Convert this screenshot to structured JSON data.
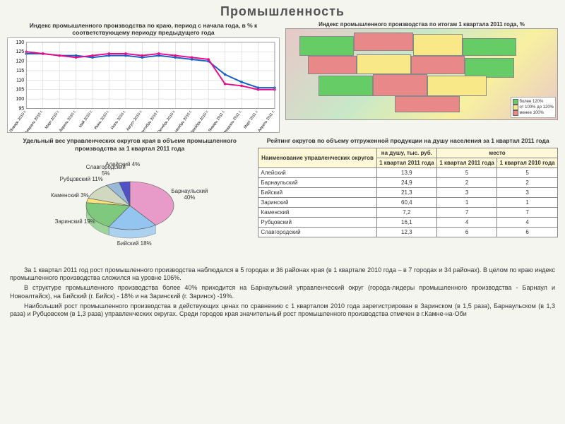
{
  "title": "Промышленность",
  "line_chart": {
    "title": "Индекс промышленного производства по краю, период с начала года, в % к соответствующему периоду предыдущего года",
    "ylim": [
      95,
      130
    ],
    "yticks": [
      95,
      100,
      105,
      110,
      115,
      120,
      125,
      130
    ],
    "x_labels": [
      "Январь 2010 г.",
      "Февраль 2010 г.",
      "Март 2010 г.",
      "Апрель 2010 г.",
      "Май 2010 г.",
      "Июнь 2010 г.",
      "Июль 2010 г.",
      "Август 2010 г.",
      "Сентябрь 2010 г.",
      "Октябрь 2010 г.",
      "Ноябрь 2010 г.",
      "Декабрь 2010 г.",
      "Январь 2011 г.",
      "Февраль 2011 г.",
      "Март 2011 г.",
      "Апрель 2011 г."
    ],
    "series": [
      {
        "color": "#1760c4",
        "values": [
          124,
          124,
          123,
          123,
          122,
          123,
          123,
          122,
          123,
          122,
          121,
          120,
          113,
          109,
          106,
          106
        ]
      },
      {
        "color": "#e80c8b",
        "values": [
          125,
          124,
          123,
          122,
          123,
          124,
          124,
          123,
          124,
          123,
          122,
          121,
          108,
          107,
          105,
          105
        ]
      }
    ],
    "background": "#ffffff",
    "grid_color": "#cccccc"
  },
  "map": {
    "title": "Индекс промышленного производства по итогам 1 квартала 2011 года, %",
    "legend": [
      {
        "color": "#66cc66",
        "label": "более 120%"
      },
      {
        "color": "#f8e888",
        "label": "от 100% до 120%"
      },
      {
        "color": "#e88888",
        "label": "менее 100%"
      }
    ]
  },
  "pie": {
    "title": "Удельный вес управленческих округов края в объеме промышленного производства за 1 квартал 2011 года",
    "slices": [
      {
        "label": "Барнаульский",
        "pct": 40,
        "color": "#e89ac8"
      },
      {
        "label": "Бийский",
        "pct": 18,
        "color": "#93c5f0"
      },
      {
        "label": "Заринский",
        "pct": 19,
        "color": "#7fc97f"
      },
      {
        "label": "Каменский",
        "pct": 3,
        "color": "#f9e27a"
      },
      {
        "label": "Рубцовский",
        "pct": 11,
        "color": "#d0d8c0"
      },
      {
        "label": "Славгородский",
        "pct": 5,
        "color": "#9ab8d8"
      },
      {
        "label": "Алейский",
        "pct": 4,
        "color": "#5050c8"
      }
    ]
  },
  "table": {
    "title": "Рейтинг округов по объему отгруженной продукции на душу населения за 1 квартал 2011 года",
    "head_name": "Наименование управленческих округов",
    "head_val_group": "на душу, тыс. руб.",
    "head_place_group": "место",
    "head_val": "1 квартал 2011 года",
    "head_p1": "1 квартал 2011 года",
    "head_p2": "1 квартал 2010 года",
    "rows": [
      {
        "name": "Алейский",
        "val": "13,9",
        "p1": "5",
        "p2": "5"
      },
      {
        "name": "Барнаульский",
        "val": "24,9",
        "p1": "2",
        "p2": "2"
      },
      {
        "name": "Бийский",
        "val": "21,3",
        "p1": "3",
        "p2": "3"
      },
      {
        "name": "Заринский",
        "val": "60,4",
        "p1": "1",
        "p2": "1"
      },
      {
        "name": "Каменский",
        "val": "7,2",
        "p1": "7",
        "p2": "7"
      },
      {
        "name": "Рубцовский",
        "val": "16,1",
        "p1": "4",
        "p2": "4"
      },
      {
        "name": "Славгородский",
        "val": "12,3",
        "p1": "6",
        "p2": "6"
      }
    ]
  },
  "text": {
    "p1": "За 1 квартал 2011 год рост промышленного производства наблюдался в 5 городах и 36 районах края (в 1 квартале 2010 года – в 7 городах и 34 районах). В целом по краю индекс промышленного производства сложился на уровне 106%.",
    "p2": "В структуре промышленного производства более 40% приходится на Барнаульский управленческий округ (города-лидеры промышленного производства - Барнаул и Новоалтайск), на Бийский (г. Бийск)  - 18% и на Заринский (г. Заринск)  -19%.",
    "p3": "Наибольший рост промышленного производства в действующих ценах по сравнению с 1 кварталом 2010 года зарегистрирован в Заринском (в 1,5 раза), Барнаульском (в 1,3 раза) и Рубцовском (в 1,3 раза) управленческих округах. Среди городов края значительный рост промышленного производства отмечен в г.Камне-на-Оби"
  }
}
